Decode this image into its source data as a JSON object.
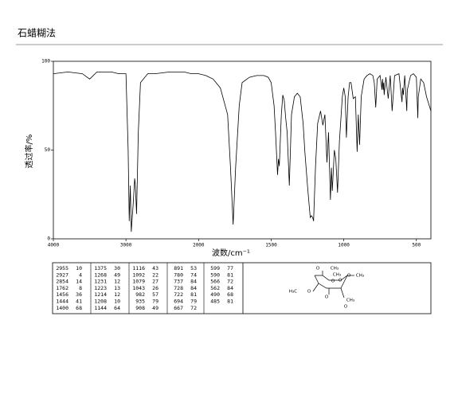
{
  "page_title": "石蜡糊法",
  "chart_data": {
    "type": "line",
    "y_label": "透过率/%",
    "x_label": "波数/cm⁻¹",
    "xlim": [
      4000,
      400
    ],
    "ylim": [
      0,
      100
    ],
    "x_scale_change": 2000,
    "xticks": [
      4000,
      3000,
      2000,
      1500,
      1000,
      500
    ],
    "yticks": [
      100,
      50,
      0
    ],
    "color": "#000000",
    "x": [
      4000,
      3800,
      3600,
      3500,
      3400,
      3200,
      3100,
      3000,
      2970,
      2955,
      2940,
      2927,
      2900,
      2880,
      2870,
      2854,
      2830,
      2800,
      2700,
      2600,
      2400,
      2200,
      2100,
      2000,
      1950,
      1900,
      1850,
      1800,
      1780,
      1762,
      1745,
      1720,
      1700,
      1650,
      1600,
      1550,
      1520,
      1500,
      1480,
      1470,
      1456,
      1450,
      1444,
      1430,
      1420,
      1410,
      1400,
      1390,
      1375,
      1360,
      1340,
      1320,
      1300,
      1280,
      1268,
      1250,
      1231,
      1223,
      1214,
      1208,
      1195,
      1180,
      1160,
      1144,
      1130,
      1116,
      1105,
      1092,
      1085,
      1079,
      1065,
      1055,
      1043,
      1030,
      1010,
      1000,
      990,
      982,
      970,
      960,
      950,
      935,
      920,
      908,
      900,
      891,
      880,
      860,
      840,
      820,
      800,
      790,
      780,
      770,
      750,
      737,
      733,
      728,
      725,
      722,
      710,
      694,
      680,
      667,
      650,
      620,
      599,
      595,
      590,
      580,
      566,
      564,
      562,
      540,
      520,
      500,
      490,
      487,
      485,
      470,
      450,
      430,
      400
    ],
    "values": [
      93,
      94,
      93,
      90,
      94,
      94,
      93,
      93,
      50,
      10,
      30,
      4,
      20,
      34,
      30,
      14,
      60,
      88,
      93,
      93,
      94,
      94,
      93,
      93,
      92,
      90,
      85,
      70,
      40,
      8,
      40,
      75,
      88,
      91,
      92,
      92,
      91,
      88,
      75,
      60,
      36,
      45,
      41,
      70,
      81,
      78,
      68,
      60,
      30,
      70,
      80,
      82,
      80,
      65,
      49,
      30,
      12,
      13,
      12,
      10,
      40,
      65,
      72,
      64,
      70,
      43,
      60,
      22,
      40,
      27,
      50,
      45,
      26,
      55,
      80,
      85,
      80,
      57,
      80,
      88,
      88,
      79,
      80,
      49,
      70,
      53,
      80,
      90,
      92,
      93,
      92,
      88,
      74,
      90,
      92,
      84,
      90,
      84,
      88,
      81,
      91,
      79,
      92,
      72,
      92,
      93,
      77,
      85,
      81,
      92,
      72,
      80,
      84,
      92,
      93,
      91,
      68,
      80,
      81,
      90,
      88,
      80,
      72
    ]
  },
  "peak_table": {
    "columns": [
      [
        [
          "2955",
          "10"
        ],
        [
          "2927",
          "4"
        ],
        [
          "2854",
          "14"
        ],
        [
          "1762",
          "8"
        ],
        [
          "1456",
          "36"
        ],
        [
          "1444",
          "41"
        ],
        [
          "1400",
          "68"
        ]
      ],
      [
        [
          "1375",
          "30"
        ],
        [
          "1268",
          "49"
        ],
        [
          "1231",
          "12"
        ],
        [
          "1223",
          "13"
        ],
        [
          "1214",
          "12"
        ],
        [
          "1208",
          "10"
        ],
        [
          "1144",
          "64"
        ]
      ],
      [
        [
          "1116",
          "43"
        ],
        [
          "1092",
          "22"
        ],
        [
          "1079",
          "27"
        ],
        [
          "1043",
          "26"
        ],
        [
          "982",
          "57"
        ],
        [
          "935",
          "79"
        ],
        [
          "908",
          "49"
        ]
      ],
      [
        [
          "891",
          "53"
        ],
        [
          "780",
          "74"
        ],
        [
          "737",
          "84"
        ],
        [
          "728",
          "84"
        ],
        [
          "722",
          "81"
        ],
        [
          "694",
          "79"
        ],
        [
          "667",
          "72"
        ]
      ],
      [
        [
          "599",
          "77"
        ],
        [
          "590",
          "81"
        ],
        [
          "566",
          "72"
        ],
        [
          "562",
          "84"
        ],
        [
          "490",
          "68"
        ],
        [
          "485",
          "81"
        ]
      ]
    ]
  },
  "structure": {
    "labels": [
      "O",
      "CH₃",
      "O",
      "CH₃",
      "O",
      "O",
      "CH₃",
      "H₃C",
      "O",
      "O",
      "CH₃",
      "O"
    ]
  }
}
